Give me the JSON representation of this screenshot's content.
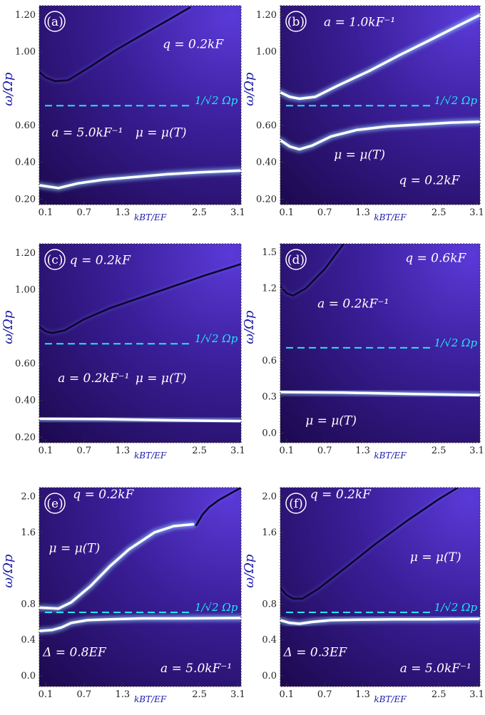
{
  "figure": {
    "colors": {
      "background_dark": "#1e0a52",
      "background_light": "#5a3ad8",
      "mode_dark": "#0e0430",
      "mode_bright": "#ffffff",
      "reference_line": "#22e6f0",
      "axis_label": "#1a1aa8"
    },
    "xlabel": "kBT/EF",
    "ylabel": "ω/Ωp",
    "reference_label": "1/√2 Ωp"
  },
  "chart_data": [
    {
      "type": "heatmap",
      "id": "a",
      "label": "(a)",
      "x_ticks": [
        "0.1",
        "0.7",
        "1.3",
        "2.5",
        "3.1"
      ],
      "x_tick_values": [
        0.1,
        0.7,
        1.3,
        2.5,
        3.1
      ],
      "xlim": [
        0.0,
        3.15
      ],
      "y_ticks": [
        "0.20",
        "0.40",
        "0.60",
        "1.00",
        "1.20"
      ],
      "y_tick_values": [
        0.2,
        0.4,
        0.6,
        1.0,
        1.2
      ],
      "ylim": [
        0.17,
        1.25
      ],
      "reference_y": 0.7071,
      "annotations": [
        {
          "text": "q = 0.2kF",
          "x": 2.4,
          "y": 1.02
        },
        {
          "text": "a = 5.0kF⁻¹",
          "x": 0.75,
          "y": 0.54
        },
        {
          "text": "μ = μ(T)",
          "x": 1.9,
          "y": 0.54
        }
      ],
      "series": [
        {
          "kind": "bright",
          "x": [
            0.0,
            0.3,
            0.6,
            1.0,
            1.5,
            2.0,
            2.5,
            3.15
          ],
          "y": [
            0.275,
            0.26,
            0.285,
            0.305,
            0.32,
            0.335,
            0.345,
            0.355
          ]
        },
        {
          "kind": "dark",
          "x": [
            0.0,
            0.1,
            0.25,
            0.45,
            0.8,
            1.2,
            1.6,
            2.0,
            2.35
          ],
          "y": [
            0.89,
            0.86,
            0.84,
            0.845,
            0.92,
            1.01,
            1.09,
            1.17,
            1.24
          ]
        }
      ]
    },
    {
      "type": "heatmap",
      "id": "b",
      "label": "(b)",
      "x_ticks": [
        "0.1",
        "0.7",
        "1.3",
        "2.5",
        "3.1"
      ],
      "x_tick_values": [
        0.1,
        0.7,
        1.3,
        2.5,
        3.1
      ],
      "xlim": [
        0.0,
        3.15
      ],
      "y_ticks": [
        "0.20",
        "0.40",
        "0.60",
        "1.00",
        "1.20"
      ],
      "y_tick_values": [
        0.2,
        0.4,
        0.6,
        1.0,
        1.2
      ],
      "ylim": [
        0.17,
        1.25
      ],
      "reference_y": 0.7071,
      "annotations": [
        {
          "text": "a = 1.0kF⁻¹",
          "x": 1.25,
          "y": 1.14
        },
        {
          "text": "μ = μ(T)",
          "x": 1.25,
          "y": 0.42
        },
        {
          "text": "q = 0.2kF",
          "x": 2.35,
          "y": 0.28
        }
      ],
      "series": [
        {
          "kind": "bright",
          "x": [
            0.0,
            0.15,
            0.3,
            0.5,
            0.8,
            1.2,
            1.7,
            2.2,
            2.7,
            3.15
          ],
          "y": [
            0.52,
            0.485,
            0.47,
            0.49,
            0.54,
            0.575,
            0.595,
            0.605,
            0.615,
            0.62
          ]
        },
        {
          "kind": "bright",
          "x": [
            0.0,
            0.15,
            0.3,
            0.55,
            0.9,
            1.4,
            1.9,
            2.4,
            2.8,
            3.15
          ],
          "y": [
            0.78,
            0.755,
            0.745,
            0.755,
            0.815,
            0.895,
            0.985,
            1.07,
            1.14,
            1.2
          ]
        }
      ]
    },
    {
      "type": "heatmap",
      "id": "c",
      "label": "(c)",
      "x_ticks": [
        "0.1",
        "0.7",
        "1.3",
        "2.5",
        "3.1"
      ],
      "x_tick_values": [
        0.1,
        0.7,
        1.3,
        2.5,
        3.1
      ],
      "xlim": [
        0.0,
        3.15
      ],
      "y_ticks": [
        "0.20",
        "0.40",
        "0.60",
        "1.00",
        "1.20"
      ],
      "y_tick_values": [
        0.2,
        0.4,
        0.6,
        1.0,
        1.2
      ],
      "ylim": [
        0.17,
        1.25
      ],
      "reference_y": 0.7071,
      "annotations": [
        {
          "text": "q = 0.2kF",
          "x": 0.95,
          "y": 1.14
        },
        {
          "text": "a = 0.2kF⁻¹",
          "x": 0.85,
          "y": 0.5
        },
        {
          "text": "μ = μ(T)",
          "x": 1.9,
          "y": 0.5
        }
      ],
      "series": [
        {
          "kind": "bright",
          "x": [
            0.0,
            1.0,
            2.0,
            3.15
          ],
          "y": [
            0.3,
            0.298,
            0.292,
            0.287
          ]
        },
        {
          "kind": "dark",
          "x": [
            0.0,
            0.1,
            0.2,
            0.4,
            0.7,
            1.1,
            1.6,
            2.1,
            2.6,
            3.15
          ],
          "y": [
            0.8,
            0.775,
            0.765,
            0.78,
            0.84,
            0.9,
            0.96,
            1.02,
            1.08,
            1.14
          ]
        }
      ]
    },
    {
      "type": "heatmap",
      "id": "d",
      "label": "(d)",
      "x_ticks": [
        "0.1",
        "0.7",
        "1.3",
        "2.5",
        "3.1"
      ],
      "x_tick_values": [
        0.1,
        0.7,
        1.3,
        2.5,
        3.1
      ],
      "xlim": [
        0.0,
        3.15
      ],
      "y_ticks": [
        "0.0",
        "0.3",
        "0.6",
        "1.2",
        "1.5"
      ],
      "y_tick_values": [
        0.0,
        0.3,
        0.6,
        1.2,
        1.5
      ],
      "ylim": [
        -0.08,
        1.57
      ],
      "reference_y": 0.7071,
      "annotations": [
        {
          "text": "q = 0.6kF",
          "x": 2.45,
          "y": 1.42
        },
        {
          "text": "a = 0.2kF⁻¹",
          "x": 1.15,
          "y": 1.04
        },
        {
          "text": "μ = μ(T)",
          "x": 0.8,
          "y": 0.07
        }
      ],
      "series": [
        {
          "kind": "bright",
          "x": [
            0.0,
            1.0,
            2.0,
            3.15
          ],
          "y": [
            0.34,
            0.335,
            0.325,
            0.315
          ]
        },
        {
          "kind": "dark",
          "x": [
            0.0,
            0.1,
            0.2,
            0.4,
            0.7,
            1.0
          ],
          "y": [
            1.22,
            1.16,
            1.14,
            1.2,
            1.36,
            1.57
          ]
        }
      ]
    },
    {
      "type": "heatmap",
      "id": "e",
      "label": "(e)",
      "x_ticks": [
        "0.1",
        "0.7",
        "1.3",
        "2.5",
        "3.1"
      ],
      "x_tick_values": [
        0.1,
        0.7,
        1.3,
        2.5,
        3.1
      ],
      "xlim": [
        0.0,
        3.15
      ],
      "y_ticks": [
        "0.0",
        "0.4",
        "0.8",
        "1.6",
        "2.0"
      ],
      "y_tick_values": [
        0.0,
        0.4,
        0.8,
        1.6,
        2.0
      ],
      "ylim": [
        -0.12,
        2.1
      ],
      "reference_y": 0.7071,
      "annotations": [
        {
          "text": "q = 0.2kF",
          "x": 1.0,
          "y": 1.98
        },
        {
          "text": "μ = μ(T)",
          "x": 0.55,
          "y": 1.38
        },
        {
          "text": "Δ = 0.8EF",
          "x": 0.55,
          "y": 0.22
        },
        {
          "text": "a = 5.0kF⁻¹",
          "x": 2.45,
          "y": 0.04
        }
      ],
      "series": [
        {
          "kind": "bright",
          "x": [
            0.0,
            0.3,
            0.5,
            0.8,
            1.1,
            1.4,
            1.8,
            2.1,
            2.4
          ],
          "y": [
            0.76,
            0.75,
            0.82,
            1.0,
            1.22,
            1.41,
            1.6,
            1.67,
            1.69
          ]
        },
        {
          "kind": "bright",
          "x": [
            0.0,
            0.2,
            0.35,
            0.5,
            0.75,
            1.1,
            1.6,
            2.2,
            3.15
          ],
          "y": [
            0.5,
            0.51,
            0.54,
            0.59,
            0.62,
            0.63,
            0.64,
            0.64,
            0.645
          ]
        },
        {
          "kind": "dark",
          "x": [
            2.45,
            2.55,
            2.65,
            2.8,
            3.0,
            3.15
          ],
          "y": [
            1.68,
            1.8,
            1.88,
            1.96,
            2.04,
            2.1
          ]
        }
      ]
    },
    {
      "type": "heatmap",
      "id": "f",
      "label": "(f)",
      "x_ticks": [
        "0.1",
        "0.7",
        "1.3",
        "2.5",
        "3.1"
      ],
      "x_tick_values": [
        0.1,
        0.7,
        1.3,
        2.5,
        3.1
      ],
      "xlim": [
        0.0,
        3.15
      ],
      "y_ticks": [
        "0.0",
        "0.4",
        "0.8",
        "1.6",
        "2.0"
      ],
      "y_tick_values": [
        0.0,
        0.4,
        0.8,
        1.6,
        2.0
      ],
      "ylim": [
        -0.12,
        2.1
      ],
      "reference_y": 0.7071,
      "annotations": [
        {
          "text": "q = 0.2kF",
          "x": 0.95,
          "y": 1.98
        },
        {
          "text": "μ = μ(T)",
          "x": 2.45,
          "y": 1.28
        },
        {
          "text": "Δ = 0.3EF",
          "x": 0.55,
          "y": 0.22
        },
        {
          "text": "a = 5.0kF⁻¹",
          "x": 2.45,
          "y": 0.04
        }
      ],
      "series": [
        {
          "kind": "bright",
          "x": [
            0.0,
            0.15,
            0.3,
            0.5,
            0.8,
            1.2,
            1.8,
            2.4,
            3.15
          ],
          "y": [
            0.62,
            0.59,
            0.58,
            0.6,
            0.62,
            0.625,
            0.63,
            0.63,
            0.635
          ]
        },
        {
          "kind": "dark",
          "x": [
            0.0,
            0.1,
            0.2,
            0.35,
            0.6,
            1.0,
            1.5,
            2.0,
            2.5,
            2.8
          ],
          "y": [
            0.98,
            0.9,
            0.86,
            0.86,
            0.97,
            1.19,
            1.47,
            1.73,
            1.97,
            2.1
          ]
        }
      ]
    }
  ]
}
